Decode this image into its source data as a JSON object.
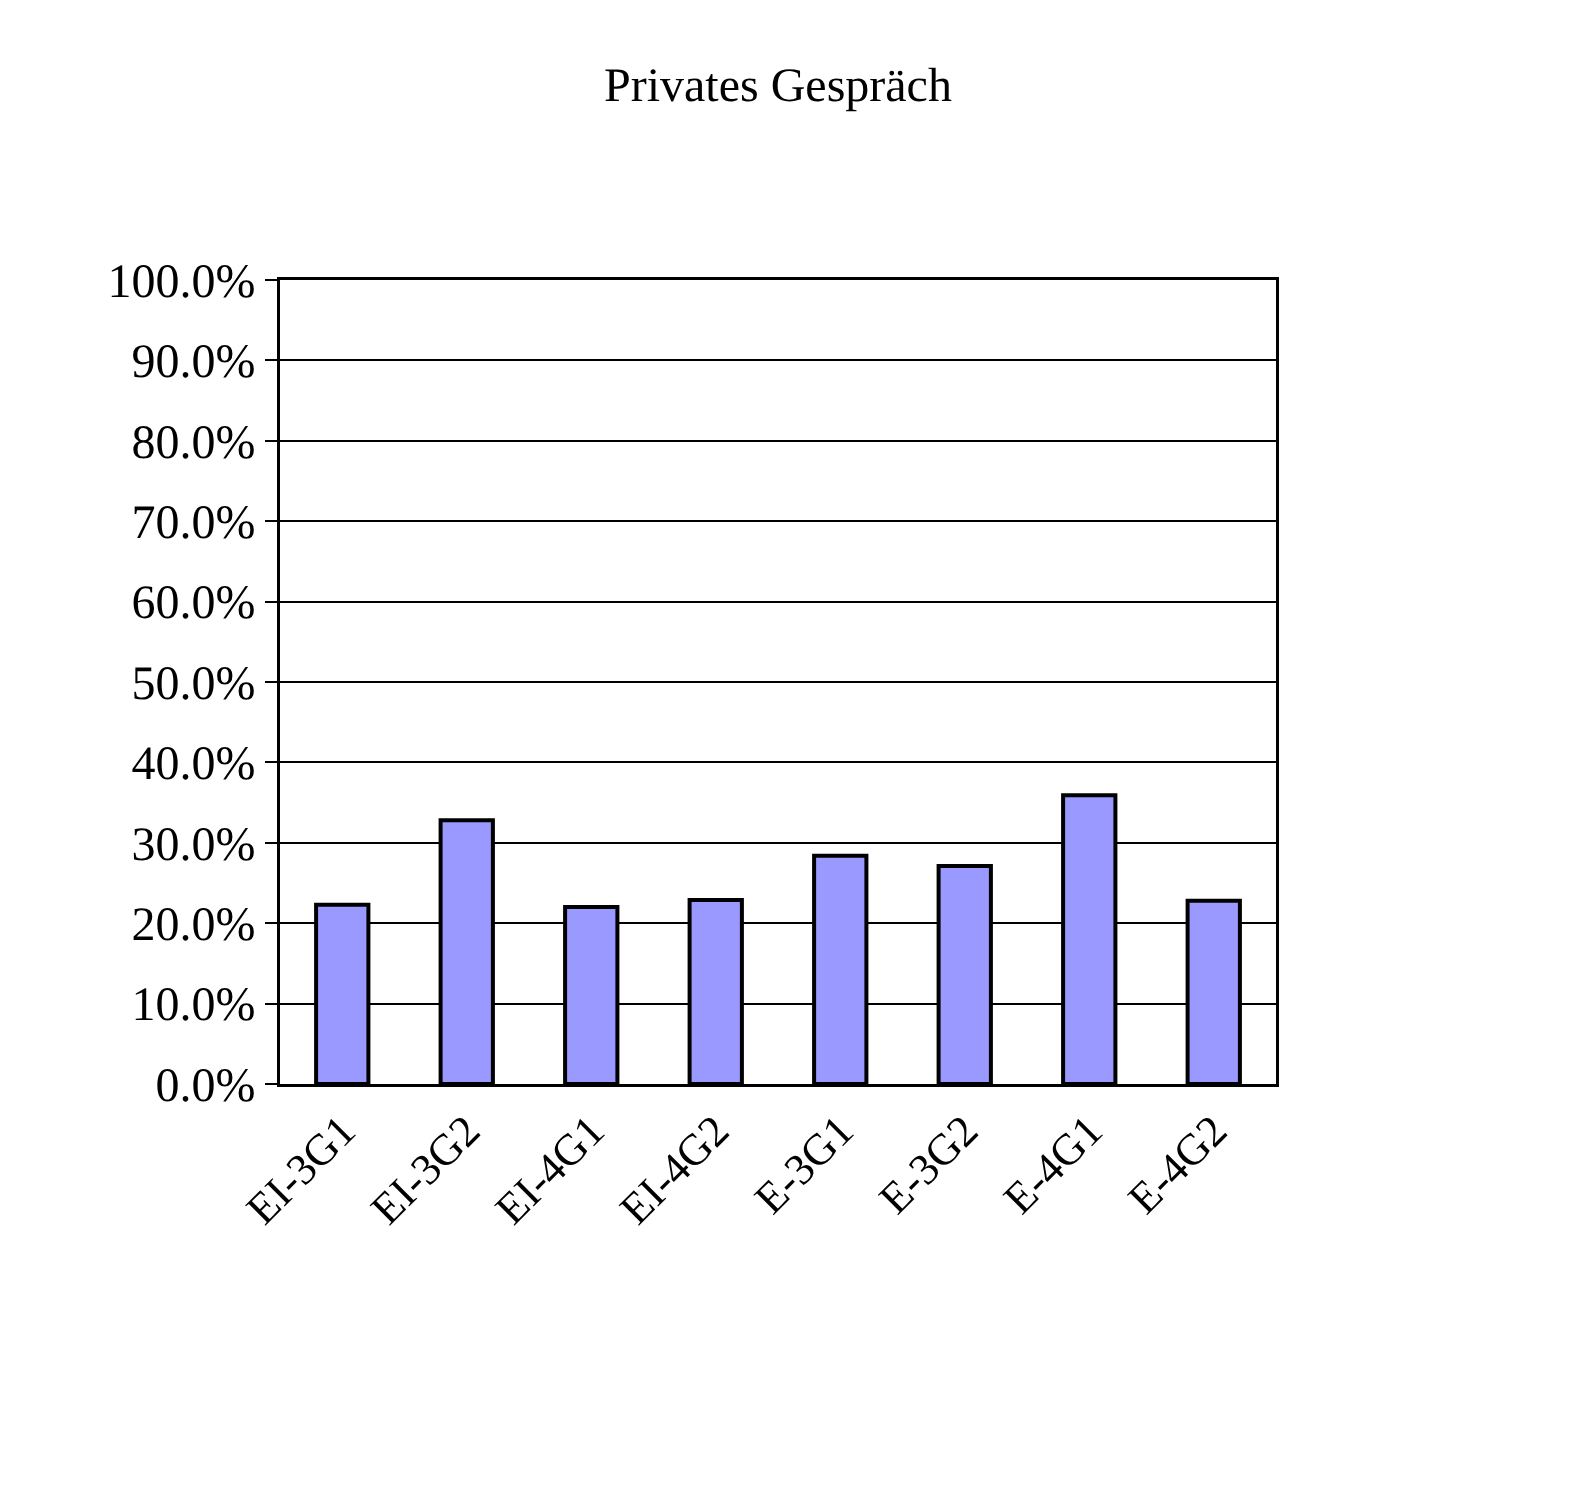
{
  "chart_data": {
    "type": "bar",
    "title": "Privates Gespräch",
    "categories": [
      "EI-3G1",
      "EI-3G2",
      "EI-4G1",
      "EI-4G2",
      "E-3G1",
      "E-3G2",
      "E-4G1",
      "E-4G2"
    ],
    "values": [
      22.3,
      32.8,
      22.0,
      22.9,
      28.4,
      27.1,
      35.9,
      22.8
    ],
    "color": "#9999ff",
    "ylim": [
      0,
      100
    ],
    "yticks": [
      {
        "value": 0,
        "label": "0.0%"
      },
      {
        "value": 10,
        "label": "10.0%"
      },
      {
        "value": 20,
        "label": "20.0%"
      },
      {
        "value": 30,
        "label": "30.0%"
      },
      {
        "value": 40,
        "label": "40.0%"
      },
      {
        "value": 50,
        "label": "50.0%"
      },
      {
        "value": 60,
        "label": "60.0%"
      },
      {
        "value": 70,
        "label": "70.0%"
      },
      {
        "value": 80,
        "label": "80.0%"
      },
      {
        "value": 90,
        "label": "90.0%"
      },
      {
        "value": 100,
        "label": "100.0%"
      }
    ],
    "grid": "y"
  }
}
